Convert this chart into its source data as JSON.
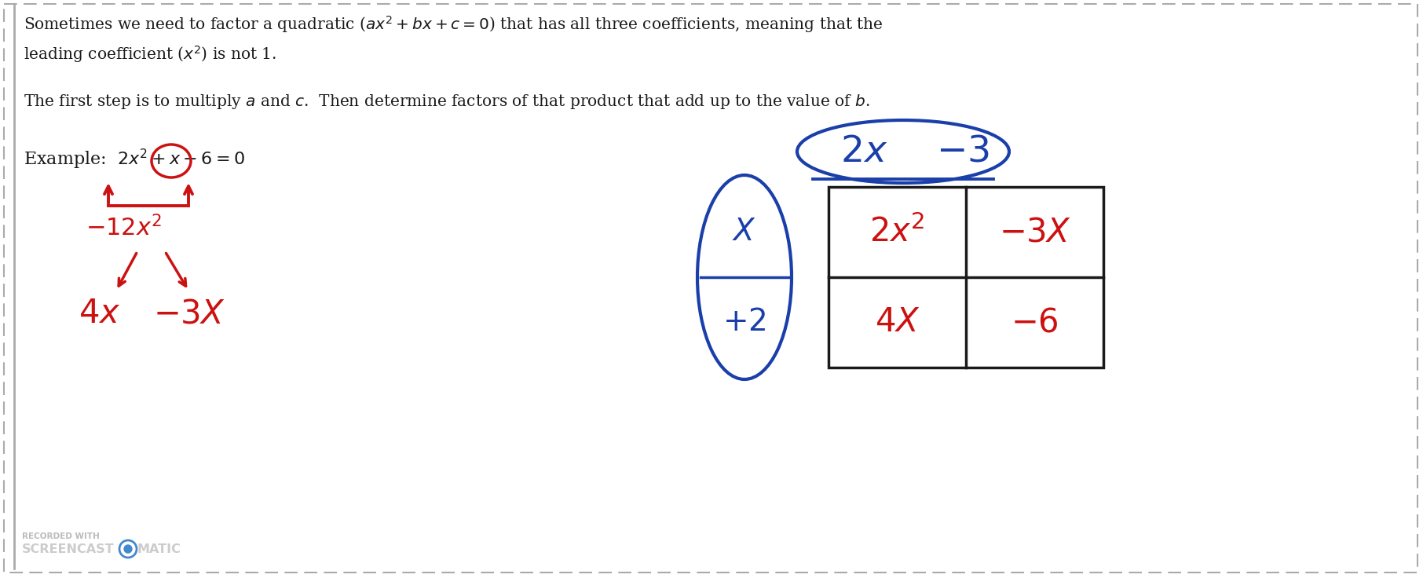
{
  "bg_color": "#ffffff",
  "border_color": "#888888",
  "text_color": "#1a1a1a",
  "red_color": "#cc1111",
  "blue_color": "#1a3faa",
  "figsize": [
    18.12,
    7.36
  ],
  "dpi": 100,
  "title_line1": "Sometimes we need to factor a quadratic ($ax^2 + bx + c = 0$) that has all three coefficients, meaning that the",
  "title_line2": "leading coefficient ($x^2$) is not 1.",
  "para2": "The first step is to multiply $a$ and $c$.  Then determine factors of that product that add up to the value of $b$.",
  "example_text": "Example:  $2x^2 + x - 6 = 0$",
  "product_text": "$-12x^2$",
  "factor1": "$4x$",
  "factor2": "$-3X$",
  "box_tl": "$2x^2$",
  "box_tr": "$-3X$",
  "box_bl": "$4X$",
  "box_br": "$-6$",
  "col_h1": "$2x$",
  "col_h2": "$-3$",
  "row_h1": "$X$",
  "row_h2": "$+2$",
  "wm1": "RECORDED WITH",
  "wm2": "SCREENCAST",
  "wm3": "MATIC"
}
